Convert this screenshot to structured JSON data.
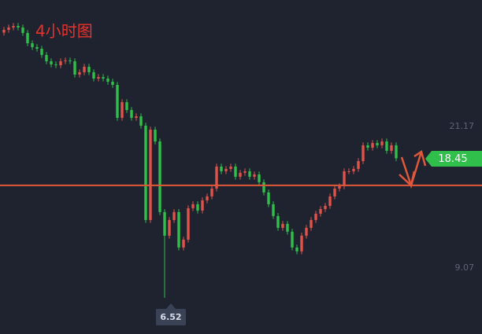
{
  "chart_data": {
    "type": "candlestick",
    "title": "4小时图",
    "open": [
      29.2,
      29.44,
      29.64,
      29.77,
      29.64,
      29.17,
      28.29,
      27.96,
      27.82,
      27.29,
      26.75,
      26.48,
      26.41,
      26.75,
      26.82,
      26.75,
      25.61,
      25.81,
      26.28,
      25.81,
      25.27,
      25.4,
      25.27,
      25.0,
      24.73,
      21.91,
      23.25,
      22.58,
      21.91,
      22.04,
      21.24,
      13.17,
      20.9,
      19.89,
      13.85,
      11.83,
      13.17,
      13.85,
      10.82,
      11.49,
      14.18,
      14.52,
      13.98,
      14.85,
      15.19,
      15.86,
      17.74,
      17.34,
      17.54,
      17.74,
      16.87,
      17.21,
      17.34,
      16.87,
      17.07,
      16.4,
      15.53,
      14.52,
      13.51,
      12.5,
      12.84,
      12.17,
      10.82,
      10.49,
      11.83,
      12.5,
      13.17,
      13.71,
      14.11,
      14.38,
      15.19,
      15.86,
      16.06,
      17.34,
      17.34,
      17.54,
      18.21,
      19.56,
      19.36,
      19.76,
      19.56,
      19.89,
      19.09,
      19.56
    ],
    "high": [
      29.69,
      29.89,
      30.02,
      30.02,
      29.89,
      29.42,
      28.54,
      28.21,
      28.07,
      27.54,
      27.0,
      26.73,
      27.0,
      27.07,
      27.07,
      27.0,
      26.06,
      26.53,
      26.53,
      26.06,
      25.65,
      25.65,
      25.52,
      25.25,
      24.98,
      23.5,
      23.5,
      22.83,
      22.29,
      22.29,
      21.49,
      21.15,
      21.15,
      20.14,
      14.1,
      13.42,
      14.1,
      14.1,
      11.74,
      14.43,
      14.77,
      14.77,
      15.1,
      15.44,
      16.11,
      17.99,
      17.99,
      17.79,
      17.99,
      17.99,
      17.46,
      17.59,
      17.59,
      17.32,
      17.32,
      16.65,
      15.78,
      14.77,
      13.76,
      13.09,
      13.09,
      12.42,
      11.07,
      12.08,
      12.75,
      13.42,
      13.96,
      14.36,
      14.63,
      15.44,
      16.11,
      16.31,
      17.59,
      17.59,
      17.79,
      18.46,
      19.81,
      19.81,
      20.01,
      20.01,
      20.14,
      20.14,
      19.81,
      19.81
    ],
    "low": [
      28.95,
      29.19,
      29.39,
      29.39,
      28.92,
      28.04,
      27.71,
      27.57,
      27.04,
      26.5,
      26.23,
      26.16,
      26.16,
      26.5,
      26.5,
      25.36,
      25.36,
      25.56,
      25.56,
      25.02,
      25.02,
      25.02,
      24.75,
      24.48,
      21.66,
      21.66,
      22.33,
      21.66,
      21.66,
      20.99,
      12.92,
      12.92,
      19.64,
      13.6,
      6.52,
      11.58,
      12.92,
      10.57,
      10.57,
      11.24,
      13.93,
      13.73,
      13.73,
      14.6,
      14.94,
      15.61,
      17.09,
      17.09,
      17.29,
      16.62,
      16.62,
      16.96,
      16.62,
      16.62,
      16.15,
      15.28,
      14.27,
      13.26,
      12.25,
      12.25,
      11.92,
      10.57,
      10.24,
      10.24,
      11.58,
      12.25,
      12.92,
      13.46,
      13.86,
      14.13,
      14.94,
      15.61,
      15.81,
      17.09,
      17.09,
      17.29,
      17.96,
      19.11,
      19.11,
      19.31,
      19.31,
      18.84,
      18.84,
      18.2
    ],
    "close": [
      29.44,
      29.64,
      29.77,
      29.64,
      29.17,
      28.29,
      27.96,
      27.82,
      27.29,
      26.75,
      26.48,
      26.41,
      26.75,
      26.82,
      26.75,
      25.61,
      25.81,
      26.28,
      25.81,
      25.27,
      25.4,
      25.27,
      25.0,
      24.73,
      21.91,
      23.25,
      22.58,
      21.91,
      22.04,
      21.24,
      13.17,
      20.9,
      19.89,
      13.85,
      11.83,
      13.17,
      13.85,
      10.82,
      11.49,
      14.18,
      14.52,
      13.98,
      14.85,
      15.19,
      15.86,
      17.74,
      17.34,
      17.54,
      17.74,
      16.87,
      17.21,
      17.34,
      16.87,
      17.07,
      16.4,
      15.53,
      14.52,
      13.51,
      12.5,
      12.84,
      12.17,
      10.82,
      10.49,
      11.83,
      12.5,
      13.17,
      13.71,
      14.11,
      14.38,
      15.19,
      15.86,
      16.06,
      17.34,
      17.34,
      17.54,
      18.21,
      19.56,
      19.36,
      19.76,
      19.56,
      19.89,
      19.09,
      19.56,
      18.45
    ],
    "up_color": "#e0534a",
    "down_color": "#2fbf4a",
    "ylim": [
      3.42,
      31.99
    ],
    "yticks": [
      9.07,
      21.17
    ],
    "level_line": 16.13,
    "level_color": "#e0573a"
  }
}
